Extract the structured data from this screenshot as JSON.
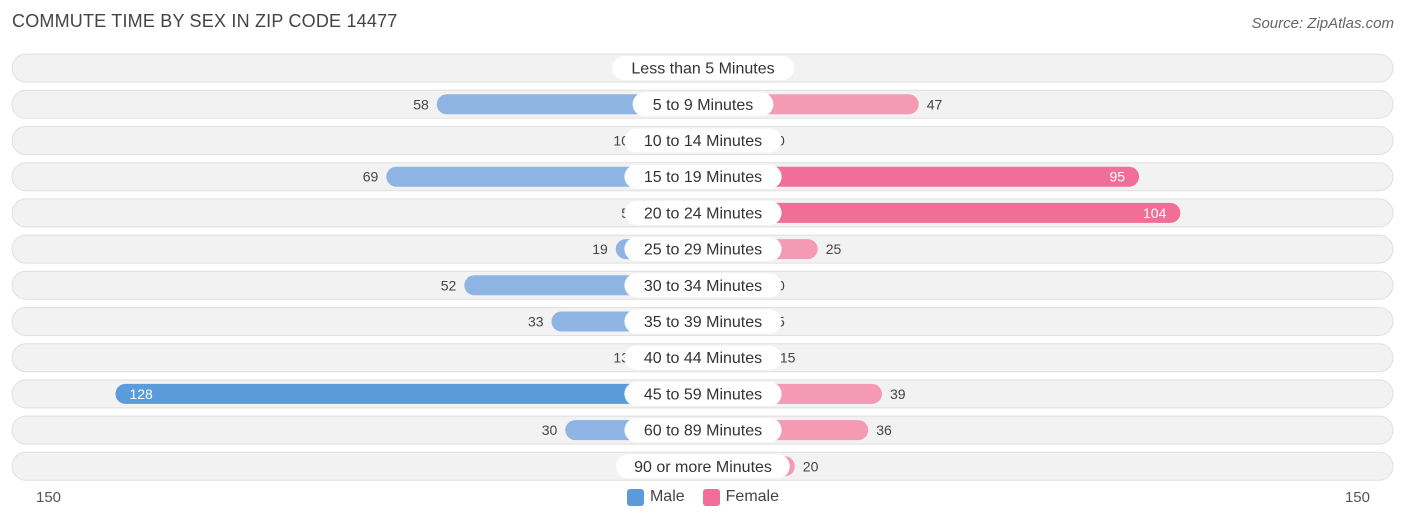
{
  "header": {
    "title": "COMMUTE TIME BY SEX IN ZIP CODE 14477",
    "source": "Source: ZipAtlas.com"
  },
  "colors": {
    "male": "#8db4e2",
    "male_strong": "#5b9bd9",
    "female": "#f59ab5",
    "female_strong": "#f06e98",
    "row_bg": "#f2f2f2",
    "row_border": "#e0e0e0"
  },
  "legend": {
    "male_label": "Male",
    "female_label": "Female"
  },
  "axis": {
    "left_label": "150",
    "right_label": "150"
  },
  "chart_data": {
    "type": "bar",
    "orientation": "horizontal-diverging",
    "xlim": [
      -150,
      150
    ],
    "categories": [
      "Less than 5 Minutes",
      "5 to 9 Minutes",
      "10 to 14 Minutes",
      "15 to 19 Minutes",
      "20 to 24 Minutes",
      "25 to 29 Minutes",
      "30 to 34 Minutes",
      "35 to 39 Minutes",
      "40 to 44 Minutes",
      "45 to 59 Minutes",
      "60 to 89 Minutes",
      "90 or more Minutes"
    ],
    "series": [
      {
        "name": "Male",
        "values": [
          0,
          58,
          10,
          69,
          5,
          19,
          52,
          33,
          13,
          128,
          30,
          0
        ]
      },
      {
        "name": "Female",
        "values": [
          7,
          47,
          0,
          95,
          104,
          25,
          0,
          5,
          15,
          39,
          36,
          20
        ]
      }
    ],
    "legend_position": "bottom-center"
  }
}
